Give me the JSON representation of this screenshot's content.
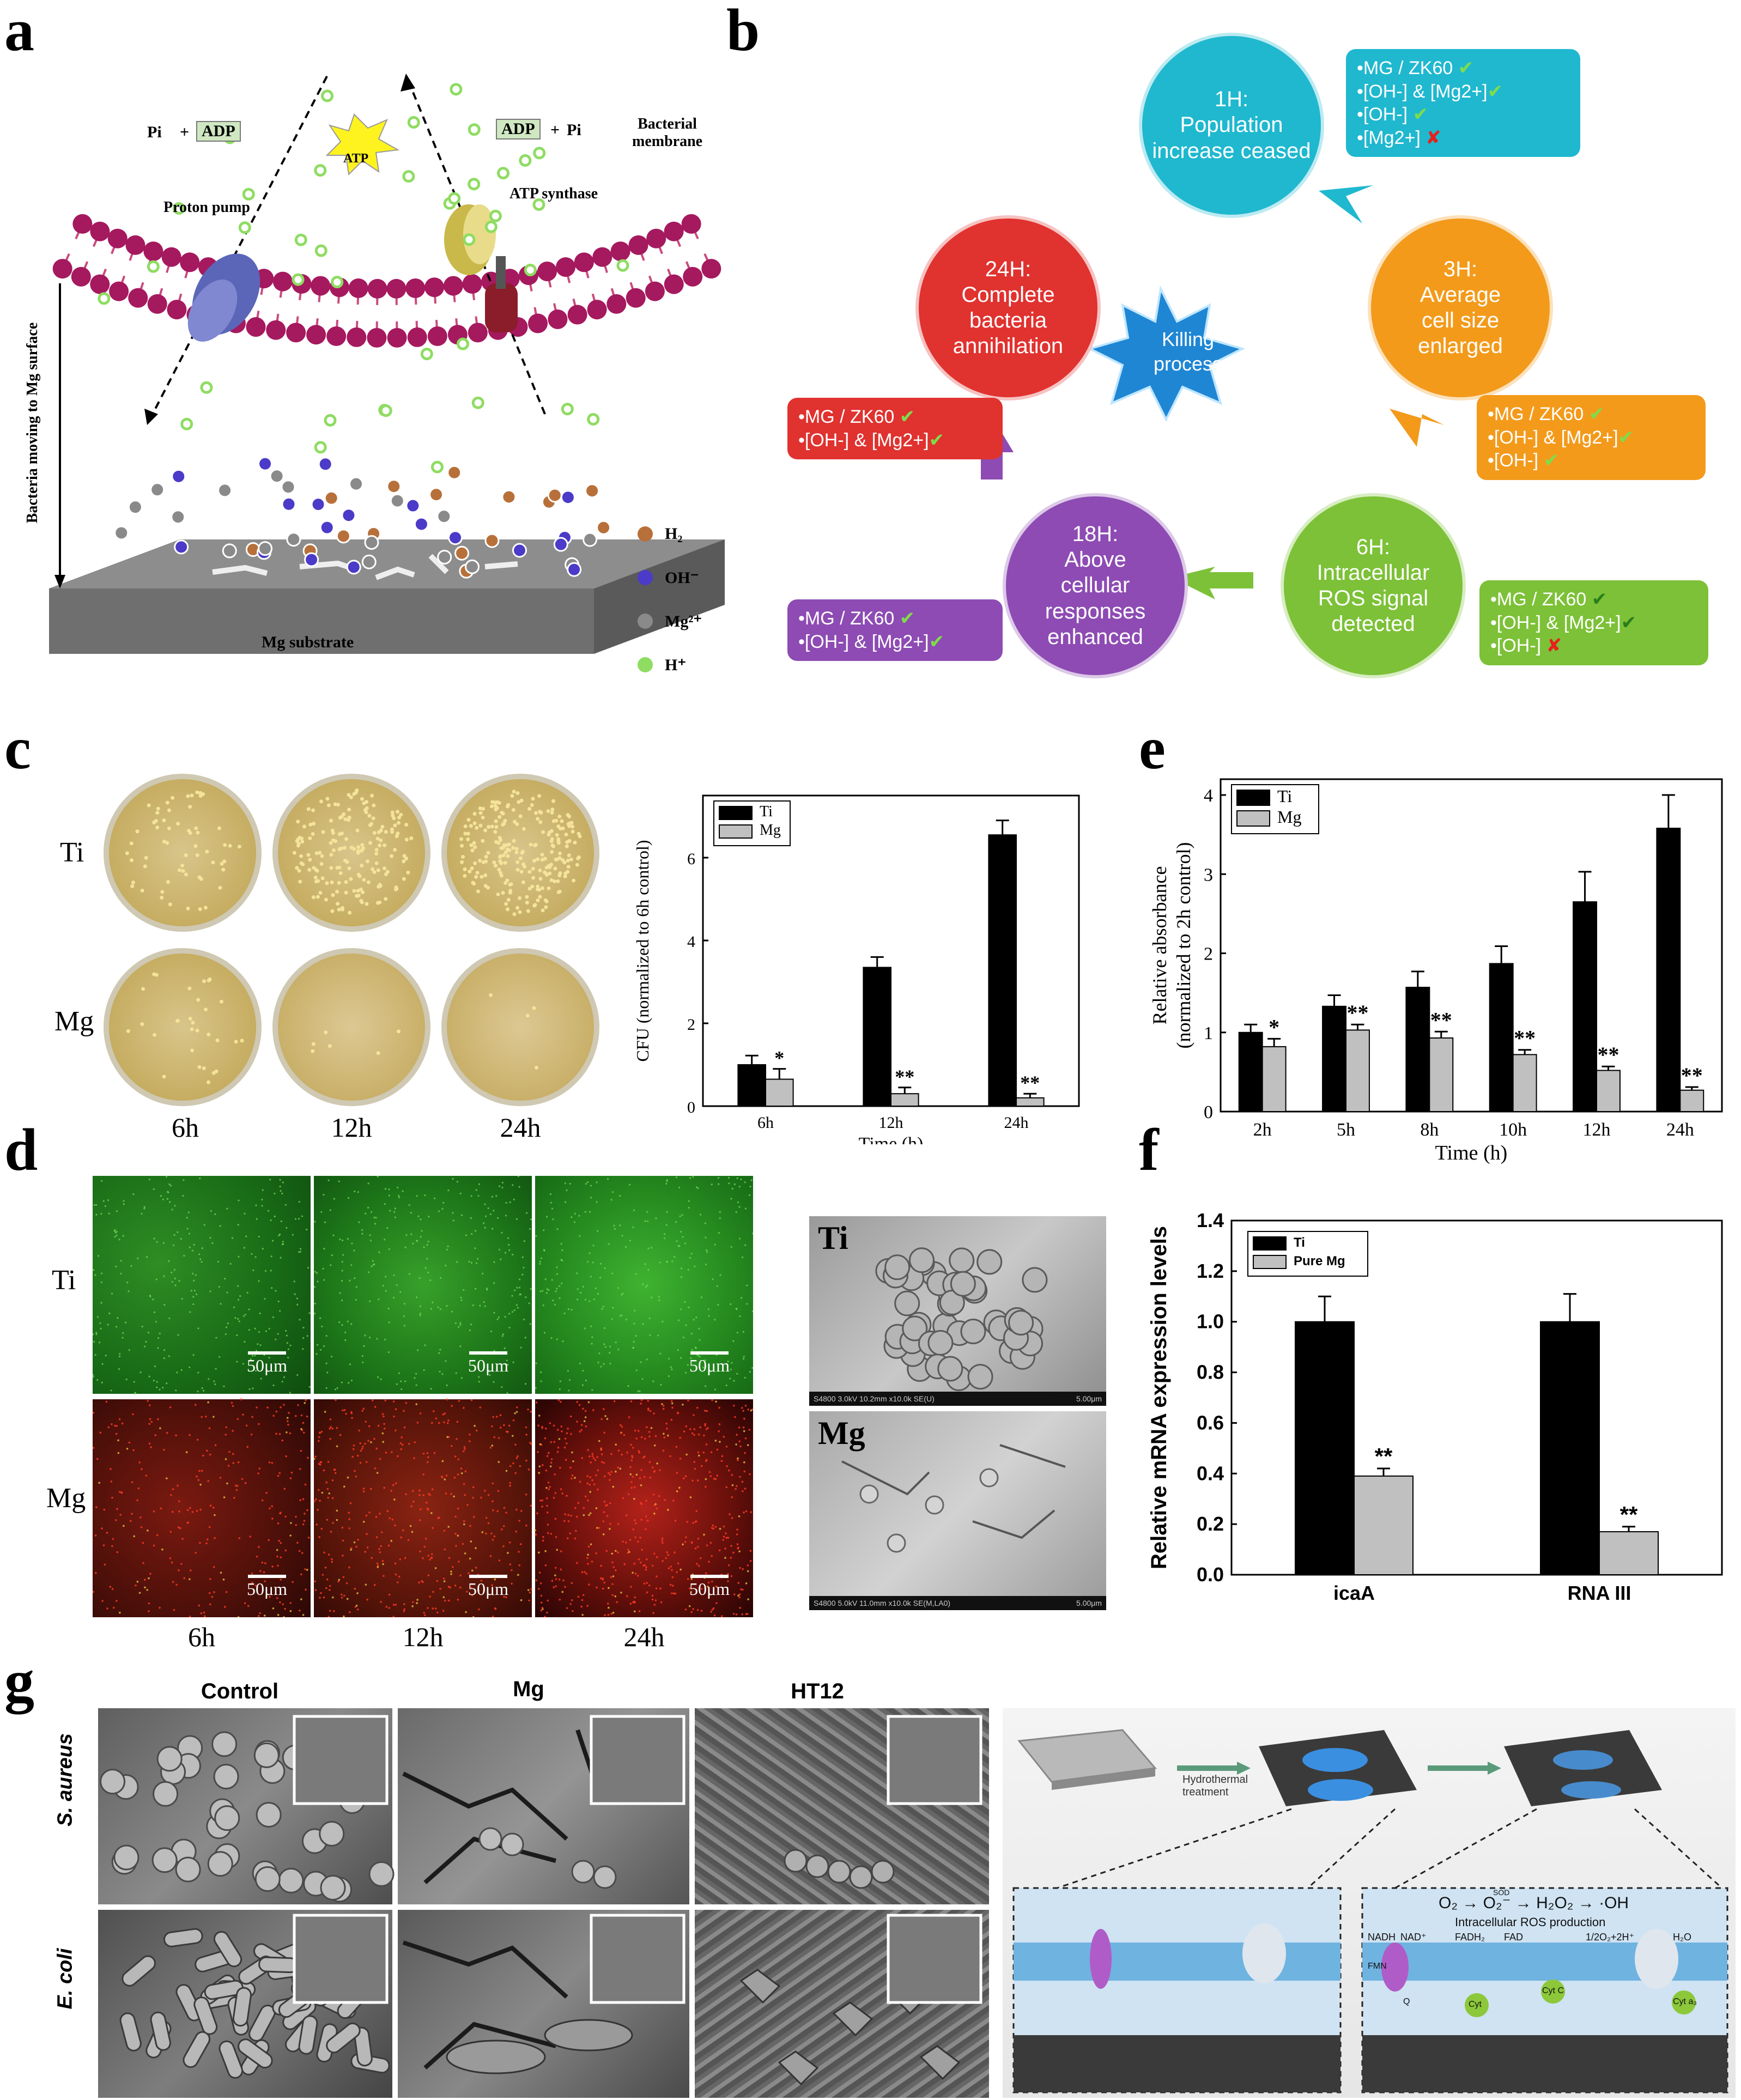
{
  "panels": {
    "a": "a",
    "b": "b",
    "c": "c",
    "d": "d",
    "e": "e",
    "f": "f",
    "g": "g"
  },
  "panel_a": {
    "labels": {
      "pi_left": "Pi",
      "plus": "+",
      "adp_left": "ADP",
      "atp": "ATP",
      "adp_right": "ADP",
      "plus2": "+",
      "pi_right": "Pi",
      "bacterial_membrane_1": "Bacterial",
      "bacterial_membrane_2": "membrane",
      "proton_pump": "Proton pump",
      "atp_synthase": "ATP synthase",
      "side_label": "Bacteria moving to Mg surface",
      "substrate": "Mg substrate"
    },
    "legend": [
      {
        "label": "H₂",
        "color": "#b8703a"
      },
      {
        "label": "OH⁻",
        "color": "#4b3bc8"
      },
      {
        "label": "Mg²⁺",
        "color": "#8a8a8a"
      },
      {
        "label": "H⁺",
        "color": "#8fdc62"
      }
    ],
    "colors": {
      "membrane_head": "#a5195e",
      "membrane_tail": "#c94b7f",
      "substrate": "#7e7e7e"
    }
  },
  "panel_b": {
    "center_1": "Killing",
    "center_2": "process",
    "steps": [
      {
        "lines": [
          "1H:",
          "Population",
          "increase ceased"
        ],
        "color": "#1fb8cf"
      },
      {
        "lines": [
          "3H:",
          "Average",
          "cell size",
          "enlarged"
        ],
        "color": "#f39a1b"
      },
      {
        "lines": [
          "6H:",
          "Intracellular",
          "ROS signal",
          "detected"
        ],
        "color": "#7cc137"
      },
      {
        "lines": [
          "18H:",
          "Above",
          "cellular",
          "responses",
          "enhanced"
        ],
        "color": "#8d4bb3"
      },
      {
        "lines": [
          "24H:",
          "Complete",
          "bacteria",
          "annihilation"
        ],
        "color": "#e0322f"
      }
    ],
    "boxes": [
      {
        "lines": [
          {
            "t": "•MG / ZK60 ",
            "m": "✔"
          },
          {
            "t": "•[OH-] & [Mg2+]",
            "m": "✔"
          },
          {
            "t": "•[OH-] ",
            "m": "✔"
          },
          {
            "t": "•[Mg2+] ",
            "m": "✘",
            "bad": true
          }
        ],
        "color": "#1fb8cf"
      },
      {
        "lines": [
          {
            "t": "•MG / ZK60 ",
            "m": "✔"
          },
          {
            "t": "•[OH-] & [Mg2+]",
            "m": "✔"
          },
          {
            "t": "•[OH-] ",
            "m": "✔"
          }
        ],
        "color": "#f39a1b"
      },
      {
        "lines": [
          {
            "t": "•MG / ZK60 ",
            "m": "✔"
          },
          {
            "t": "•[OH-] & [Mg2+]",
            "m": "✔"
          },
          {
            "t": "•[OH-] ",
            "m": "✘",
            "bad": true
          }
        ],
        "color": "#7cc137"
      },
      {
        "lines": [
          {
            "t": "•MG / ZK60 ",
            "m": "✔"
          },
          {
            "t": "•[OH-] & [Mg2+]",
            "m": "✔"
          }
        ],
        "color": "#8d4bb3"
      },
      {
        "lines": [
          {
            "t": "•MG / ZK60 ",
            "m": "✔"
          },
          {
            "t": "•[OH-] & [Mg2+]",
            "m": "✔"
          }
        ],
        "color": "#e0322f"
      }
    ]
  },
  "panel_c": {
    "rows": [
      "Ti",
      "Mg"
    ],
    "cols": [
      "6h",
      "12h",
      "24h"
    ]
  },
  "panel_d": {
    "rows": [
      "Ti",
      "Mg"
    ],
    "cols": [
      "6h",
      "12h",
      "24h"
    ],
    "scale": "50μm",
    "sem_labels": [
      "Ti",
      "Mg"
    ],
    "sem_footer_ti": "S4800 3.0kV 10.2mm x10.0k SE(U)",
    "sem_footer_ti_scale": "5.00μm",
    "sem_footer_mg": "S4800 5.0kV 11.0mm x10.0k SE(M,LA0)",
    "sem_footer_mg_scale": "5.00μm"
  },
  "panel_g": {
    "cols": [
      "Control",
      "Mg",
      "HT12"
    ],
    "rows": [
      "S. aureus",
      "E. coli"
    ],
    "schematic_label": "Hydrothermal\ntreatment",
    "ros_eq": "O₂ → O₂⁻ → H₂O₂ → ·OH",
    "ros_label": "Intracellular ROS production",
    "sod": "SOD",
    "mito": [
      "NADH",
      "NAD⁺",
      "FADH₂",
      "FAD",
      "1/2O₂+2H⁺",
      "H₂O",
      "FMN",
      "Q",
      "Cyt",
      "Cyt C",
      "Cyt a₃"
    ]
  },
  "chart_data": [
    {
      "id": "c",
      "type": "bar",
      "categories": [
        "6h",
        "12h",
        "24h"
      ],
      "series": [
        {
          "name": "Ti",
          "values": [
            1.0,
            3.35,
            6.55
          ],
          "errors": [
            0.22,
            0.25,
            0.35
          ],
          "color": "#000000"
        },
        {
          "name": "Mg",
          "values": [
            0.65,
            0.3,
            0.2
          ],
          "errors": [
            0.25,
            0.15,
            0.1
          ],
          "color": "#c0c0c0"
        }
      ],
      "significance": {
        "Mg": [
          "*",
          "**",
          "**"
        ]
      },
      "xlabel": "Time (h)",
      "ylabel": "CFU (normalized to 6h control)",
      "ylim": [
        0,
        7.5
      ],
      "yticks": [
        0,
        2,
        4,
        6
      ],
      "legend": "top-left"
    },
    {
      "id": "e",
      "type": "bar",
      "categories": [
        "2h",
        "5h",
        "8h",
        "10h",
        "12h",
        "24h"
      ],
      "series": [
        {
          "name": "Ti",
          "values": [
            1.0,
            1.33,
            1.57,
            1.87,
            2.65,
            3.58
          ],
          "errors": [
            0.1,
            0.14,
            0.2,
            0.22,
            0.38,
            0.42
          ],
          "color": "#000000"
        },
        {
          "name": "Mg",
          "values": [
            0.82,
            1.03,
            0.93,
            0.72,
            0.52,
            0.27
          ],
          "errors": [
            0.1,
            0.07,
            0.08,
            0.06,
            0.05,
            0.04
          ],
          "color": "#c0c0c0"
        }
      ],
      "significance": {
        "Mg": [
          "*",
          "**",
          "**",
          "**",
          "**",
          "**"
        ]
      },
      "xlabel": "Time (h)",
      "ylabel": "Relative absorbance",
      "ylabel2": "(normalized to 2h control)",
      "ylim": [
        0,
        4.2
      ],
      "yticks": [
        0,
        1,
        2,
        3,
        4
      ],
      "legend": "top-left"
    },
    {
      "id": "f",
      "type": "bar",
      "categories": [
        "icaA",
        "RNA III"
      ],
      "series": [
        {
          "name": "Ti",
          "values": [
            1.0,
            1.0
          ],
          "errors": [
            0.1,
            0.11
          ],
          "color": "#000000"
        },
        {
          "name": "Pure Mg",
          "values": [
            0.39,
            0.17
          ],
          "errors": [
            0.03,
            0.02
          ],
          "color": "#c0c0c0"
        }
      ],
      "significance": {
        "Pure Mg": [
          "**",
          "**"
        ]
      },
      "xlabel": "",
      "ylabel": "Relative mRNA expression levels",
      "ylim": [
        0,
        1.4
      ],
      "yticks": [
        0.0,
        0.2,
        0.4,
        0.6,
        0.8,
        1.0,
        1.2,
        1.4
      ],
      "legend": "top-left"
    }
  ]
}
